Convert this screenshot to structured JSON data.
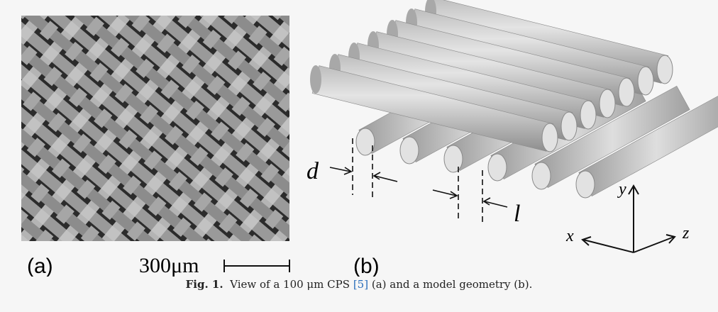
{
  "panel_a": {
    "label": "(a)",
    "scale_bar": "300μm"
  },
  "panel_b": {
    "label": "(b)",
    "dimension_d": "d",
    "dimension_l": "l",
    "axis_x": "x",
    "axis_y": "y",
    "axis_z": "z"
  },
  "caption": {
    "number": "Fig. 1.",
    "text_before": "View of a 100 μm CPS",
    "reference": "[5]",
    "text_after": "(a) and a model geometry (b)."
  }
}
